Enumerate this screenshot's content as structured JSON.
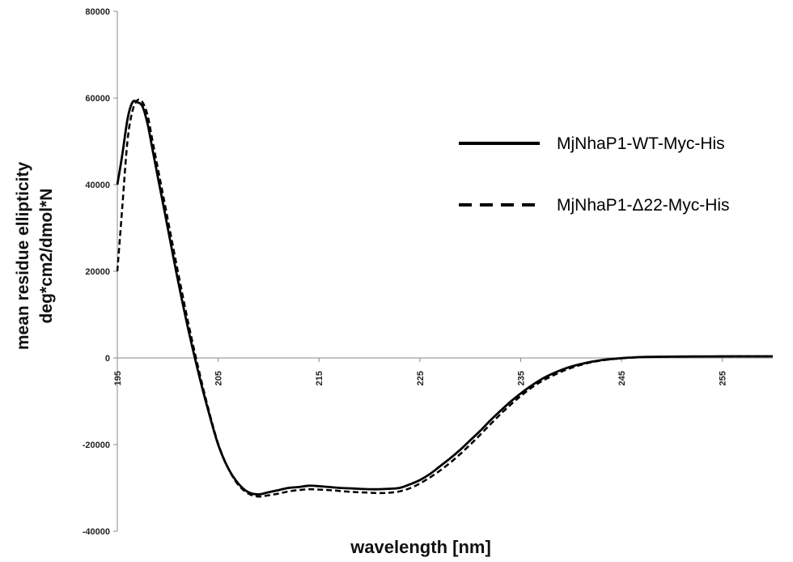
{
  "chart_data": {
    "type": "line",
    "xlabel": "wavelength [nm]",
    "ylabel_lines": [
      "mean residue ellipticity",
      "deg*cm2/dmol*N"
    ],
    "xlim": [
      195,
      260
    ],
    "ylim": [
      -40000,
      80000
    ],
    "y_ticks": [
      80000,
      60000,
      40000,
      20000,
      0,
      -20000,
      -40000
    ],
    "y_tick_labels": [
      "80000",
      "60000",
      "40000",
      "20000",
      "0",
      "-20000",
      "-40000"
    ],
    "x_ticks": [
      195,
      205,
      215,
      225,
      235,
      245,
      255
    ],
    "x_tick_labels": [
      "195",
      "205",
      "215",
      "225",
      "235",
      "245",
      "255"
    ],
    "grid": false,
    "legend_position": "top-right",
    "series": [
      {
        "name": "MjNhaP1-WT-Myc-His",
        "style": "solid",
        "color": "#000000",
        "x": [
          195,
          195.5,
          196,
          196.5,
          197,
          197.5,
          198,
          198.5,
          199,
          200,
          201,
          202,
          203,
          204,
          205,
          206,
          207,
          208,
          209,
          210,
          211,
          212,
          213,
          214,
          215,
          216,
          217,
          218,
          219,
          220,
          221,
          222,
          223,
          224,
          225,
          226,
          227,
          228,
          229,
          230,
          231,
          232,
          233,
          234,
          235,
          236,
          237,
          238,
          239,
          240,
          241,
          242,
          243,
          244,
          245,
          246,
          247,
          248,
          250,
          252,
          254,
          256,
          258,
          260
        ],
        "y": [
          40000,
          47000,
          55000,
          59000,
          59000,
          58000,
          54000,
          48000,
          42000,
          30000,
          18000,
          7000,
          -3000,
          -12000,
          -20000,
          -25500,
          -29000,
          -31000,
          -31500,
          -31000,
          -30500,
          -30000,
          -29800,
          -29500,
          -29600,
          -29800,
          -30000,
          -30100,
          -30200,
          -30300,
          -30300,
          -30200,
          -30000,
          -29200,
          -28200,
          -26800,
          -25000,
          -23200,
          -21200,
          -19000,
          -16800,
          -14400,
          -12200,
          -10100,
          -8200,
          -6500,
          -5000,
          -3800,
          -2800,
          -2000,
          -1400,
          -900,
          -500,
          -250,
          -50,
          100,
          200,
          250,
          300,
          330,
          350,
          370,
          380,
          380
        ]
      },
      {
        "name": "MjNhaP1-Δ22-Myc-His",
        "style": "dashed",
        "color": "#000000",
        "x": [
          195,
          195.5,
          196,
          196.5,
          197,
          197.5,
          198,
          198.5,
          199,
          200,
          201,
          202,
          203,
          204,
          205,
          206,
          207,
          208,
          209,
          210,
          211,
          212,
          213,
          214,
          215,
          216,
          217,
          218,
          219,
          220,
          221,
          222,
          223,
          224,
          225,
          226,
          227,
          228,
          229,
          230,
          231,
          232,
          233,
          234,
          235,
          236,
          237,
          238,
          239,
          240,
          241,
          242,
          243,
          244,
          245,
          246,
          247,
          248,
          250,
          252,
          254,
          256,
          258,
          260
        ],
        "y": [
          20000,
          35000,
          50000,
          57000,
          59500,
          59000,
          56000,
          50000,
          44000,
          32000,
          20000,
          8500,
          -2000,
          -11500,
          -19800,
          -25500,
          -29300,
          -31300,
          -32000,
          -31700,
          -31300,
          -30800,
          -30500,
          -30300,
          -30400,
          -30500,
          -30700,
          -30900,
          -31000,
          -31100,
          -31200,
          -31100,
          -30800,
          -30100,
          -29000,
          -27600,
          -26000,
          -24200,
          -22200,
          -20000,
          -17700,
          -15300,
          -13000,
          -10800,
          -8800,
          -7000,
          -5500,
          -4300,
          -3200,
          -2300,
          -1600,
          -1000,
          -600,
          -300,
          -80,
          80,
          180,
          240,
          290,
          320,
          340,
          360,
          370,
          370
        ]
      }
    ]
  }
}
